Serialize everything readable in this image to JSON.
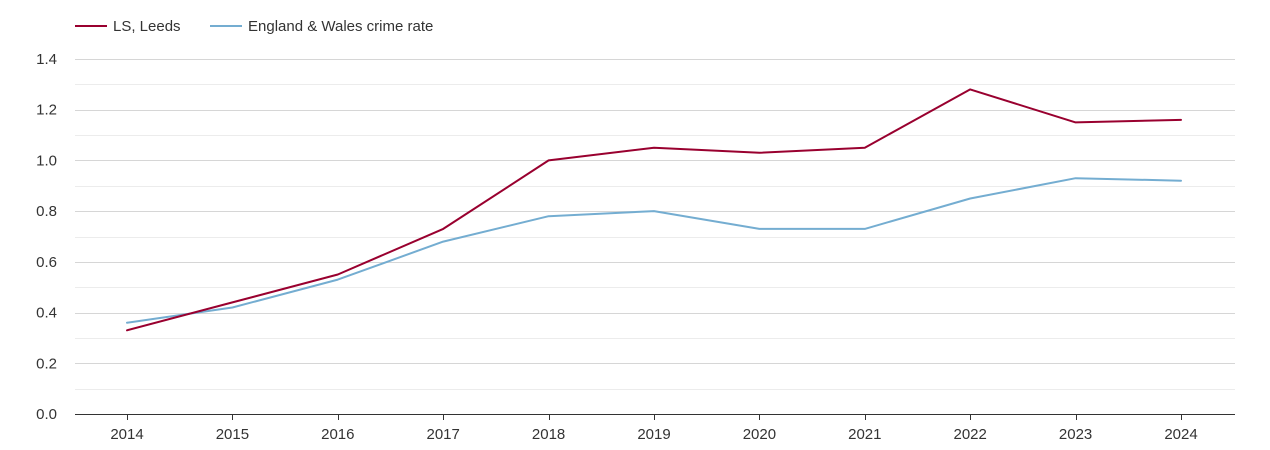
{
  "chart_data": {
    "type": "line",
    "title": "",
    "xlabel": "",
    "ylabel": "",
    "categories": [
      "2014",
      "2015",
      "2016",
      "2017",
      "2018",
      "2019",
      "2020",
      "2021",
      "2022",
      "2023",
      "2024"
    ],
    "yticks": [
      "0.0",
      "0.2",
      "0.4",
      "0.6",
      "0.8",
      "1.0",
      "1.2",
      "1.4"
    ],
    "ylim": [
      0,
      1.4
    ],
    "grid": true,
    "legend_position": "top-left",
    "series": [
      {
        "name": "LS, Leeds",
        "color": "#99002f",
        "values": [
          0.33,
          0.44,
          0.55,
          0.73,
          1.0,
          1.05,
          1.03,
          1.05,
          1.28,
          1.15,
          1.16
        ]
      },
      {
        "name": "England & Wales crime rate",
        "color": "#74add1",
        "values": [
          0.36,
          0.42,
          0.53,
          0.68,
          0.78,
          0.8,
          0.73,
          0.73,
          0.85,
          0.93,
          0.92
        ]
      }
    ]
  }
}
